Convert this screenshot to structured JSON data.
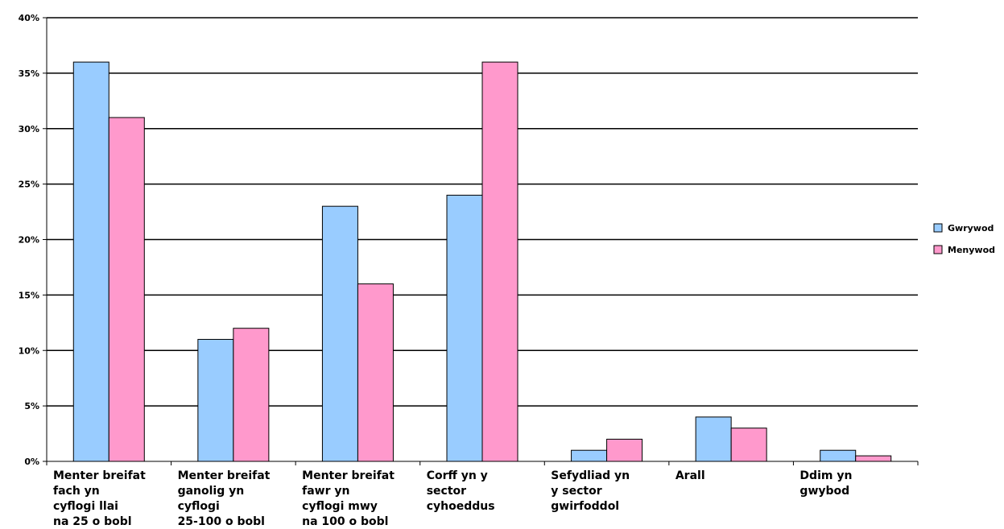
{
  "chart_data": {
    "type": "bar",
    "categories": [
      [
        "Menter breifat",
        "fach yn",
        "cyflogi llai",
        "na 25 o bobl"
      ],
      [
        "Menter breifat",
        "ganolig yn",
        "cyflogi",
        "25-100 o bobl"
      ],
      [
        "Menter breifat",
        "fawr yn",
        "cyflogi mwy",
        "na 100 o bobl"
      ],
      [
        "Corff yn y",
        "sector",
        "cyhoeddus"
      ],
      [
        "Sefydliad yn",
        "y sector",
        "gwirfoddol"
      ],
      [
        "Arall"
      ],
      [
        "Ddim yn",
        "gwybod"
      ]
    ],
    "series": [
      {
        "name": "Gwrywod",
        "color": "#99ccff",
        "values": [
          36,
          11,
          23,
          24,
          1,
          4,
          1
        ]
      },
      {
        "name": "Menywod",
        "color": "#ff99cc",
        "values": [
          31,
          12,
          16,
          36,
          2,
          3,
          0.5
        ]
      }
    ],
    "ylim": [
      0,
      40
    ],
    "yticks": [
      0,
      5,
      10,
      15,
      20,
      25,
      30,
      35,
      40
    ],
    "ytick_suffix": "%",
    "grid": true,
    "legend_position": "right",
    "title": "",
    "xlabel": "",
    "ylabel": ""
  }
}
